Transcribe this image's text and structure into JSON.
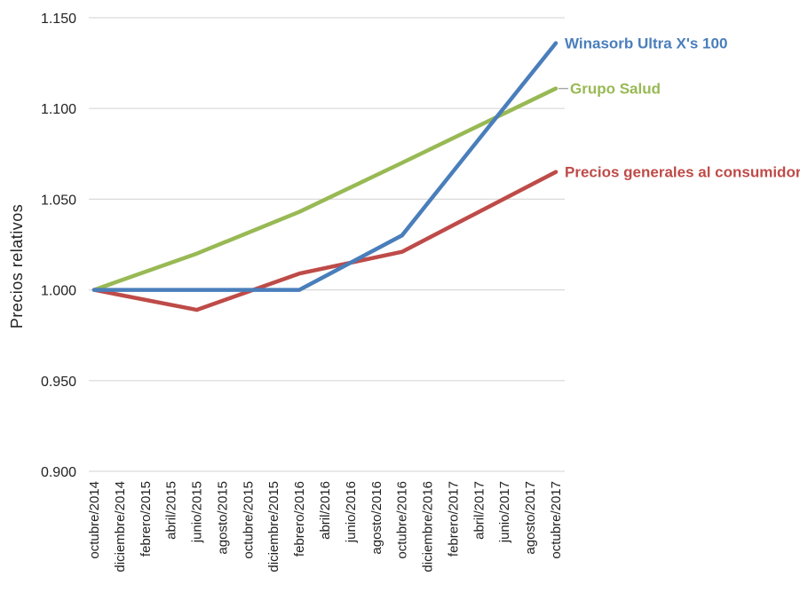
{
  "chart_data": {
    "type": "line",
    "title": "",
    "xlabel": "",
    "ylabel": "Precios relativos",
    "ylim": [
      0.9,
      1.15
    ],
    "yticks": [
      "1.150",
      "1.100",
      "1.050",
      "1.000",
      "0.950",
      "0.900"
    ],
    "ytick_values": [
      1.15,
      1.1,
      1.05,
      1.0,
      0.95,
      0.9
    ],
    "grid": true,
    "categories": [
      "octubre/2014",
      "diciembre/2014",
      "febrero/2015",
      "abril/2015",
      "junio/2015",
      "agosto/2015",
      "octubre/2015",
      "diciembre/2015",
      "febrero/2016",
      "abril/2016",
      "junio/2016",
      "agosto/2016",
      "octubre/2016",
      "diciembre/2016",
      "febrero/2017",
      "abril/2017",
      "junio/2017",
      "agosto/2017",
      "octubre/2017"
    ],
    "series": [
      {
        "name": "Winasorb Ultra X's 100",
        "color": "#4a7ebb",
        "x": [
          "octubre/2014",
          "junio/2015",
          "febrero/2016",
          "octubre/2016",
          "abril/2017",
          "octubre/2017"
        ],
        "values": [
          1.0,
          1.0,
          1.0,
          1.03,
          1.083,
          1.136
        ]
      },
      {
        "name": "Grupo Salud",
        "color": "#98b954",
        "x": [
          "octubre/2014",
          "junio/2015",
          "febrero/2016",
          "octubre/2016",
          "octubre/2017"
        ],
        "values": [
          1.0,
          1.02,
          1.043,
          1.07,
          1.111
        ]
      },
      {
        "name": "Precios generales al consumidor",
        "color": "#be4b48",
        "x": [
          "octubre/2014",
          "junio/2015",
          "febrero/2016",
          "octubre/2016",
          "abril/2017",
          "octubre/2017"
        ],
        "values": [
          1.0,
          0.989,
          1.009,
          1.021,
          1.043,
          1.065
        ]
      }
    ]
  }
}
